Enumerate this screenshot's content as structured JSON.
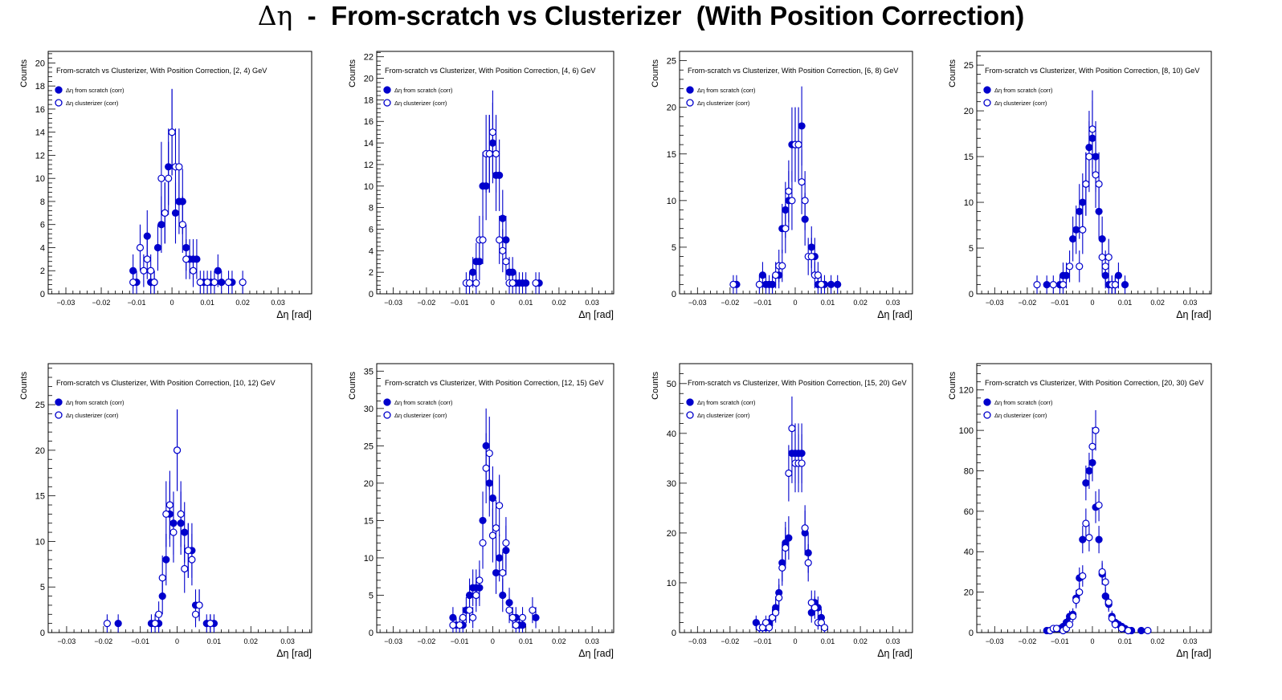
{
  "title": {
    "eta_symbol": "Δη",
    "rest": "  -  From-scratch vs Clusterizer  (With Position Correction)"
  },
  "common": {
    "ylabel": "Counts",
    "xlabel": "Δη  [rad]",
    "x_ticks": [
      "-0.03",
      "-0.02",
      "-0.01",
      "0",
      "0.01",
      "0.02",
      "0.03"
    ],
    "legend": [
      {
        "label": "Δη  from scratch (corr)",
        "marker": "filled-circle"
      },
      {
        "label": "Δη  clusterizer (corr)",
        "marker": "open-circle"
      }
    ],
    "colors": {
      "series": "#0000cc",
      "axis": "#000000"
    }
  },
  "chart_data": [
    {
      "type": "scatter",
      "title": "From-scratch vs Clusterizer, With Position Correction, [2, 4) GeV",
      "xlim": [
        -0.035,
        0.0395
      ],
      "ylim": [
        0,
        21
      ],
      "y_ticks": [
        0,
        2,
        4,
        6,
        8,
        10,
        12,
        14,
        16,
        18,
        20
      ],
      "series": [
        {
          "name": "Δη  from scratch (corr)",
          "filled": true,
          "x": [
            -0.011,
            -0.01,
            -0.007,
            -0.006,
            -0.005,
            -0.004,
            -0.003,
            -0.002,
            -0.001,
            0.0,
            0.001,
            0.002,
            0.003,
            0.004,
            0.005,
            0.006,
            0.007,
            0.009,
            0.011,
            0.013,
            0.014,
            0.017
          ],
          "y": [
            2,
            1,
            5,
            1,
            1,
            4,
            6,
            7,
            11,
            14,
            7,
            8,
            8,
            4,
            3,
            3,
            3,
            1,
            1,
            2,
            1,
            1
          ]
        },
        {
          "name": "Δη  clusterizer (corr)",
          "filled": false,
          "x": [
            -0.011,
            -0.009,
            -0.008,
            -0.007,
            -0.006,
            -0.005,
            -0.003,
            -0.002,
            -0.001,
            0.0,
            0.001,
            0.002,
            0.003,
            0.004,
            0.006,
            0.008,
            0.01,
            0.012,
            0.016,
            0.02
          ],
          "y": [
            1,
            4,
            2,
            3,
            2,
            1,
            10,
            7,
            10,
            14,
            11,
            11,
            6,
            3,
            2,
            1,
            1,
            1,
            1,
            1
          ]
        }
      ]
    },
    {
      "type": "scatter",
      "title": "From-scratch vs Clusterizer, With Position Correction, [4, 6) GeV",
      "xlim": [
        -0.035,
        0.0365
      ],
      "ylim": [
        0,
        22.5
      ],
      "y_ticks": [
        0,
        2,
        4,
        6,
        8,
        10,
        12,
        14,
        16,
        18,
        20,
        22
      ],
      "series": [
        {
          "name": "Δη  from scratch (corr)",
          "filled": true,
          "x": [
            -0.006,
            -0.005,
            -0.004,
            -0.003,
            -0.002,
            -0.001,
            0.0,
            0.001,
            0.002,
            0.003,
            0.004,
            0.005,
            0.006,
            0.007,
            0.008,
            0.009,
            0.01,
            0.014
          ],
          "y": [
            2,
            3,
            3,
            10,
            10,
            13,
            14,
            11,
            11,
            7,
            5,
            2,
            2,
            1,
            1,
            1,
            1,
            1
          ]
        },
        {
          "name": "Δη  clusterizer (corr)",
          "filled": false,
          "x": [
            -0.008,
            -0.007,
            -0.005,
            -0.004,
            -0.003,
            -0.002,
            -0.001,
            0.0,
            0.001,
            0.002,
            0.003,
            0.004,
            0.005,
            0.006,
            0.013
          ],
          "y": [
            1,
            1,
            1,
            5,
            5,
            13,
            13,
            15,
            13,
            5,
            4,
            3,
            1,
            1,
            1
          ]
        }
      ]
    },
    {
      "type": "scatter",
      "title": "From-scratch vs Clusterizer, With Position Correction, [6, 8) GeV",
      "xlim": [
        -0.0355,
        0.036
      ],
      "ylim": [
        0,
        26
      ],
      "y_ticks": [
        0,
        5,
        10,
        15,
        20,
        25
      ],
      "series": [
        {
          "name": "Δη  from scratch (corr)",
          "filled": true,
          "x": [
            -0.018,
            -0.01,
            -0.009,
            -0.008,
            -0.007,
            -0.005,
            -0.004,
            -0.003,
            -0.002,
            -0.001,
            0.0,
            0.001,
            0.002,
            0.003,
            0.005,
            0.006,
            0.007,
            0.008,
            0.009,
            0.011,
            0.013
          ],
          "y": [
            1,
            2,
            1,
            1,
            1,
            2,
            7,
            9,
            10,
            16,
            16,
            16,
            18,
            8,
            5,
            4,
            1,
            1,
            1,
            1,
            1
          ]
        },
        {
          "name": "Δη  clusterizer (corr)",
          "filled": false,
          "x": [
            -0.019,
            -0.011,
            -0.006,
            -0.005,
            -0.004,
            -0.003,
            -0.002,
            -0.001,
            0.0,
            0.001,
            0.002,
            0.003,
            0.004,
            0.005,
            0.006,
            0.007,
            0.008
          ],
          "y": [
            1,
            1,
            2,
            3,
            3,
            7,
            11,
            10,
            16,
            16,
            12,
            10,
            4,
            4,
            2,
            2,
            1
          ]
        }
      ]
    },
    {
      "type": "scatter",
      "title": "From-scratch vs Clusterizer, With Position Correction, [8, 10) GeV",
      "xlim": [
        -0.0355,
        0.0365
      ],
      "ylim": [
        0,
        26.5
      ],
      "y_ticks": [
        0,
        5,
        10,
        15,
        20,
        25
      ],
      "series": [
        {
          "name": "Δη  from scratch (corr)",
          "filled": true,
          "x": [
            -0.014,
            -0.01,
            -0.009,
            -0.008,
            -0.006,
            -0.005,
            -0.004,
            -0.003,
            -0.002,
            -0.001,
            0.0,
            0.001,
            0.002,
            0.003,
            0.004,
            0.005,
            0.006,
            0.007,
            0.008,
            0.01
          ],
          "y": [
            1,
            1,
            2,
            2,
            6,
            7,
            9,
            10,
            12,
            16,
            17,
            15,
            9,
            6,
            2,
            1,
            1,
            1,
            2,
            1
          ]
        },
        {
          "name": "Δη  clusterizer (corr)",
          "filled": false,
          "x": [
            -0.017,
            -0.012,
            -0.009,
            -0.007,
            -0.004,
            -0.003,
            -0.002,
            -0.001,
            0.0,
            0.001,
            0.002,
            0.003,
            0.004,
            0.005,
            0.006,
            0.007
          ],
          "y": [
            1,
            1,
            1,
            3,
            3,
            7,
            12,
            15,
            18,
            13,
            12,
            4,
            3,
            4,
            1,
            1
          ]
        }
      ]
    },
    {
      "type": "scatter",
      "title": "From-scratch vs Clusterizer, With Position Correction, [10, 12) GeV",
      "xlim": [
        -0.035,
        0.0365
      ],
      "ylim": [
        0,
        29.5
      ],
      "y_ticks": [
        0,
        5,
        10,
        15,
        20,
        25
      ],
      "series": [
        {
          "name": "Δη  from scratch (corr)",
          "filled": true,
          "x": [
            -0.016,
            -0.007,
            -0.006,
            -0.005,
            -0.004,
            -0.003,
            -0.002,
            -0.001,
            0.0,
            0.001,
            0.002,
            0.003,
            0.004,
            0.005,
            0.006,
            0.008,
            0.009,
            0.01
          ],
          "y": [
            1,
            1,
            1,
            1,
            4,
            8,
            13,
            12,
            20,
            12,
            11,
            9,
            9,
            3,
            3,
            1,
            1,
            1
          ]
        },
        {
          "name": "Δη  clusterizer (corr)",
          "filled": false,
          "x": [
            -0.019,
            -0.006,
            -0.005,
            -0.004,
            -0.003,
            -0.002,
            -0.001,
            0.0,
            0.001,
            0.002,
            0.003,
            0.004,
            0.005,
            0.006,
            0.009
          ],
          "y": [
            1,
            1,
            2,
            6,
            13,
            14,
            11,
            20,
            13,
            7,
            9,
            8,
            2,
            3,
            1
          ]
        }
      ]
    },
    {
      "type": "scatter",
      "title": "From-scratch vs Clusterizer, With Position Correction, [12, 15) GeV",
      "xlim": [
        -0.035,
        0.0365
      ],
      "ylim": [
        0,
        36
      ],
      "y_ticks": [
        0,
        5,
        10,
        15,
        20,
        25,
        30,
        35
      ],
      "series": [
        {
          "name": "Δη  from scratch (corr)",
          "filled": true,
          "x": [
            -0.012,
            -0.011,
            -0.009,
            -0.008,
            -0.007,
            -0.006,
            -0.005,
            -0.004,
            -0.003,
            -0.002,
            -0.001,
            0.0,
            0.001,
            0.002,
            0.003,
            0.004,
            0.005,
            0.006,
            0.007,
            0.008,
            0.009,
            0.013
          ],
          "y": [
            2,
            1,
            1,
            3,
            5,
            6,
            6,
            6,
            15,
            25,
            20,
            18,
            8,
            10,
            5,
            11,
            4,
            2,
            2,
            1,
            1,
            2
          ]
        },
        {
          "name": "Δη  clusterizer (corr)",
          "filled": false,
          "x": [
            -0.012,
            -0.01,
            -0.009,
            -0.007,
            -0.006,
            -0.005,
            -0.004,
            -0.003,
            -0.002,
            -0.001,
            0.0,
            0.001,
            0.002,
            0.003,
            0.004,
            0.005,
            0.006,
            0.007,
            0.009,
            0.012
          ],
          "y": [
            1,
            1,
            2,
            3,
            2,
            5,
            7,
            12,
            22,
            24,
            13,
            14,
            17,
            8,
            12,
            3,
            2,
            1,
            2,
            3
          ]
        }
      ]
    },
    {
      "type": "scatter",
      "title": "From-scratch vs Clusterizer, With Position Correction, [15, 20) GeV",
      "xlim": [
        -0.0355,
        0.036
      ],
      "ylim": [
        0,
        54
      ],
      "y_ticks": [
        0,
        10,
        20,
        30,
        40,
        50
      ],
      "series": [
        {
          "name": "Δη  from scratch (corr)",
          "filled": true,
          "x": [
            -0.012,
            -0.011,
            -0.01,
            -0.009,
            -0.008,
            -0.007,
            -0.006,
            -0.005,
            -0.004,
            -0.003,
            -0.002,
            -0.001,
            0.0,
            0.001,
            0.002,
            0.003,
            0.004,
            0.005,
            0.006,
            0.007,
            0.008
          ],
          "y": [
            2,
            1,
            1,
            1,
            2,
            3,
            5,
            8,
            14,
            18,
            19,
            36,
            36,
            36,
            36,
            20,
            16,
            4,
            6,
            5,
            3
          ]
        },
        {
          "name": "Δη  clusterizer (corr)",
          "filled": false,
          "x": [
            -0.011,
            -0.01,
            -0.009,
            -0.008,
            -0.007,
            -0.006,
            -0.005,
            -0.004,
            -0.003,
            -0.002,
            -0.001,
            0.0,
            0.001,
            0.002,
            0.003,
            0.004,
            0.005,
            0.006,
            0.007,
            0.008,
            0.009
          ],
          "y": [
            1,
            1,
            2,
            1,
            3,
            4,
            7,
            13,
            17,
            32,
            41,
            34,
            34,
            34,
            21,
            14,
            6,
            5,
            2,
            2,
            1
          ]
        }
      ]
    },
    {
      "type": "scatter",
      "title": "From-scratch vs Clusterizer, With Position Correction, [20, 30) GeV",
      "xlim": [
        -0.0355,
        0.0365
      ],
      "ylim": [
        0,
        133
      ],
      "y_ticks": [
        0,
        20,
        40,
        60,
        80,
        100,
        120
      ],
      "series": [
        {
          "name": "Δη  from scratch (corr)",
          "filled": true,
          "x": [
            -0.014,
            -0.013,
            -0.011,
            -0.01,
            -0.009,
            -0.008,
            -0.007,
            -0.006,
            -0.005,
            -0.004,
            -0.003,
            -0.002,
            -0.001,
            0.0,
            0.001,
            0.002,
            0.003,
            0.004,
            0.005,
            0.006,
            0.007,
            0.008,
            0.009,
            0.01,
            0.011,
            0.012,
            0.015
          ],
          "y": [
            1,
            1,
            2,
            2,
            3,
            5,
            8,
            9,
            17,
            27,
            46,
            74,
            80,
            84,
            62,
            46,
            29,
            18,
            14,
            8,
            5,
            4,
            3,
            2,
            1,
            1,
            1
          ]
        },
        {
          "name": "Δη  clusterizer (corr)",
          "filled": false,
          "x": [
            -0.013,
            -0.012,
            -0.011,
            -0.009,
            -0.008,
            -0.007,
            -0.006,
            -0.005,
            -0.004,
            -0.003,
            -0.002,
            -0.001,
            0.0,
            0.001,
            0.002,
            0.003,
            0.004,
            0.005,
            0.006,
            0.007,
            0.009,
            0.011,
            0.017
          ],
          "y": [
            1,
            2,
            2,
            1,
            2,
            4,
            8,
            16,
            20,
            28,
            54,
            47,
            92,
            100,
            63,
            30,
            25,
            15,
            7,
            4,
            2,
            1,
            1
          ]
        }
      ]
    }
  ]
}
